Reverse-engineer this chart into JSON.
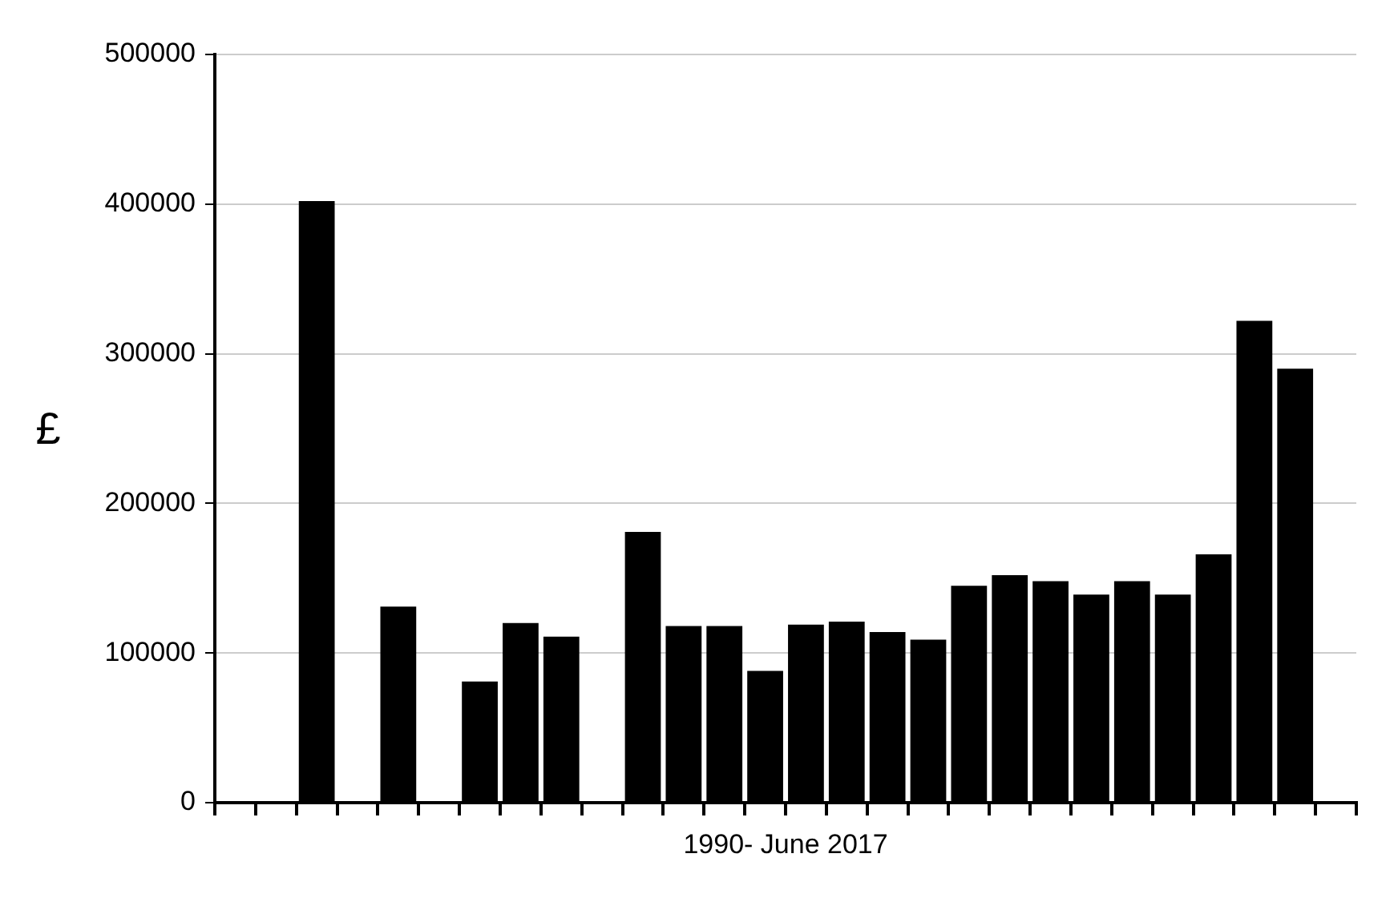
{
  "chart_data": {
    "type": "bar",
    "xlabel": "1990- June 2017",
    "ylabel": "£",
    "categories": [
      null,
      null,
      null,
      null,
      null,
      null,
      null,
      null,
      null,
      null,
      null,
      null,
      null,
      null,
      null,
      null,
      null,
      null,
      null,
      null,
      null,
      null,
      null,
      null,
      null,
      null,
      null,
      null
    ],
    "values": [
      0,
      0,
      402000,
      0,
      131000,
      0,
      81000,
      120000,
      111000,
      0,
      181000,
      118000,
      118000,
      88000,
      119000,
      121000,
      114000,
      109000,
      145000,
      152000,
      148000,
      139000,
      148000,
      139000,
      166000,
      322000,
      290000,
      0
    ],
    "color": "#000000",
    "ylim": [
      0,
      500000
    ],
    "yticks": [
      0,
      100000,
      200000,
      300000,
      400000,
      500000
    ],
    "grid": "y"
  }
}
